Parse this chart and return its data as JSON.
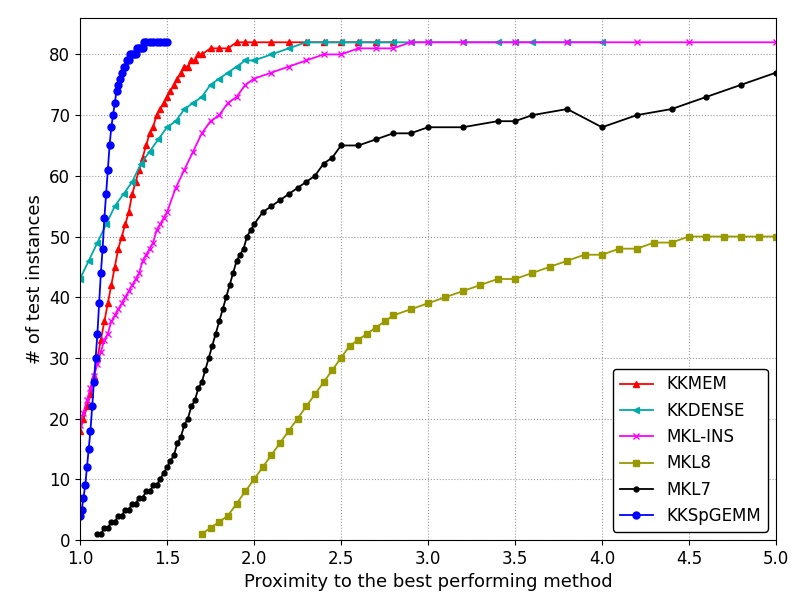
{
  "xlabel": "Proximity to the best performing method",
  "ylabel": "# of test instances",
  "xlim": [
    1.0,
    5.0
  ],
  "ylim": [
    0,
    86
  ],
  "series": [
    {
      "label": "KKMEM",
      "color": "#ff0000",
      "marker": "^",
      "markersize": 5,
      "linewidth": 1.3,
      "x": [
        1.0,
        1.02,
        1.04,
        1.06,
        1.08,
        1.1,
        1.12,
        1.14,
        1.16,
        1.18,
        1.2,
        1.22,
        1.24,
        1.26,
        1.28,
        1.3,
        1.32,
        1.34,
        1.36,
        1.38,
        1.4,
        1.42,
        1.44,
        1.46,
        1.48,
        1.5,
        1.52,
        1.54,
        1.56,
        1.58,
        1.6,
        1.62,
        1.64,
        1.66,
        1.68,
        1.7,
        1.75,
        1.8,
        1.85,
        1.9,
        1.95,
        2.0,
        2.1,
        2.2,
        2.3,
        2.4,
        2.5,
        2.6,
        2.7,
        2.8
      ],
      "y": [
        18,
        20,
        22,
        24,
        27,
        30,
        33,
        36,
        39,
        42,
        45,
        48,
        50,
        52,
        54,
        57,
        59,
        61,
        63,
        65,
        67,
        68,
        70,
        71,
        72,
        73,
        74,
        75,
        76,
        77,
        78,
        78,
        79,
        79,
        80,
        80,
        81,
        81,
        81,
        82,
        82,
        82,
        82,
        82,
        82,
        82,
        82,
        82,
        82,
        82
      ]
    },
    {
      "label": "KKDENSE",
      "color": "#00aaaa",
      "marker": "<",
      "markersize": 5,
      "linewidth": 1.3,
      "x": [
        1.0,
        1.05,
        1.1,
        1.15,
        1.2,
        1.25,
        1.3,
        1.35,
        1.4,
        1.45,
        1.5,
        1.55,
        1.6,
        1.65,
        1.7,
        1.75,
        1.8,
        1.85,
        1.9,
        1.95,
        2.0,
        2.1,
        2.2,
        2.3,
        2.4,
        2.5,
        2.6,
        2.7,
        2.8,
        2.9,
        3.0,
        3.2,
        3.4,
        3.5,
        3.6,
        3.8,
        4.0
      ],
      "y": [
        43,
        46,
        49,
        52,
        55,
        57,
        59,
        62,
        64,
        66,
        68,
        69,
        71,
        72,
        73,
        75,
        76,
        77,
        78,
        79,
        79,
        80,
        81,
        82,
        82,
        82,
        82,
        82,
        82,
        82,
        82,
        82,
        82,
        82,
        82,
        82,
        82
      ]
    },
    {
      "label": "MKL-INS",
      "color": "#ff00ff",
      "marker": "x",
      "markersize": 5,
      "linewidth": 1.3,
      "x": [
        1.0,
        1.02,
        1.04,
        1.06,
        1.08,
        1.1,
        1.12,
        1.14,
        1.16,
        1.18,
        1.2,
        1.22,
        1.24,
        1.26,
        1.28,
        1.3,
        1.32,
        1.34,
        1.36,
        1.38,
        1.4,
        1.42,
        1.44,
        1.46,
        1.48,
        1.5,
        1.55,
        1.6,
        1.65,
        1.7,
        1.75,
        1.8,
        1.85,
        1.9,
        1.95,
        2.0,
        2.1,
        2.2,
        2.3,
        2.4,
        2.5,
        2.6,
        2.7,
        2.8,
        2.9,
        3.0,
        3.2,
        3.5,
        3.8,
        4.2,
        4.5,
        5.0
      ],
      "y": [
        19,
        21,
        23,
        25,
        27,
        29,
        31,
        33,
        34,
        36,
        37,
        38,
        39,
        40,
        41,
        42,
        43,
        44,
        46,
        47,
        48,
        49,
        51,
        52,
        53,
        54,
        58,
        61,
        64,
        67,
        69,
        70,
        72,
        73,
        75,
        76,
        77,
        78,
        79,
        80,
        80,
        81,
        81,
        81,
        82,
        82,
        82,
        82,
        82,
        82,
        82,
        82
      ]
    },
    {
      "label": "MKL8",
      "color": "#999900",
      "marker": "s",
      "markersize": 5,
      "linewidth": 1.3,
      "x": [
        1.7,
        1.75,
        1.8,
        1.85,
        1.9,
        1.95,
        2.0,
        2.05,
        2.1,
        2.15,
        2.2,
        2.25,
        2.3,
        2.35,
        2.4,
        2.45,
        2.5,
        2.55,
        2.6,
        2.65,
        2.7,
        2.75,
        2.8,
        2.9,
        3.0,
        3.1,
        3.2,
        3.3,
        3.4,
        3.5,
        3.6,
        3.7,
        3.8,
        3.9,
        4.0,
        4.1,
        4.2,
        4.3,
        4.4,
        4.5,
        4.6,
        4.7,
        4.8,
        4.9,
        5.0
      ],
      "y": [
        1,
        2,
        3,
        4,
        6,
        8,
        10,
        12,
        14,
        16,
        18,
        20,
        22,
        24,
        26,
        28,
        30,
        32,
        33,
        34,
        35,
        36,
        37,
        38,
        39,
        40,
        41,
        42,
        43,
        43,
        44,
        45,
        46,
        47,
        47,
        48,
        48,
        49,
        49,
        50,
        50,
        50,
        50,
        50,
        50
      ]
    },
    {
      "label": "MKL7",
      "color": "#000000",
      "marker": "o",
      "markersize": 3.5,
      "linewidth": 1.3,
      "x": [
        1.1,
        1.12,
        1.14,
        1.16,
        1.18,
        1.2,
        1.22,
        1.24,
        1.26,
        1.28,
        1.3,
        1.32,
        1.34,
        1.36,
        1.38,
        1.4,
        1.42,
        1.44,
        1.46,
        1.48,
        1.5,
        1.52,
        1.54,
        1.56,
        1.58,
        1.6,
        1.62,
        1.64,
        1.66,
        1.68,
        1.7,
        1.72,
        1.74,
        1.76,
        1.78,
        1.8,
        1.82,
        1.84,
        1.86,
        1.88,
        1.9,
        1.92,
        1.94,
        1.96,
        1.98,
        2.0,
        2.05,
        2.1,
        2.15,
        2.2,
        2.25,
        2.3,
        2.35,
        2.4,
        2.45,
        2.5,
        2.6,
        2.7,
        2.8,
        2.9,
        3.0,
        3.2,
        3.4,
        3.5,
        3.6,
        3.8,
        4.0,
        4.2,
        4.4,
        4.6,
        4.8,
        5.0
      ],
      "y": [
        1,
        1,
        2,
        2,
        3,
        3,
        4,
        4,
        5,
        5,
        6,
        6,
        7,
        7,
        8,
        8,
        9,
        9,
        10,
        11,
        12,
        13,
        14,
        16,
        17,
        19,
        20,
        22,
        23,
        25,
        26,
        28,
        30,
        32,
        34,
        36,
        38,
        40,
        42,
        44,
        46,
        47,
        48,
        50,
        51,
        52,
        54,
        55,
        56,
        57,
        58,
        59,
        60,
        62,
        63,
        65,
        65,
        66,
        67,
        67,
        68,
        68,
        69,
        69,
        70,
        71,
        68,
        70,
        71,
        73,
        75,
        77
      ]
    },
    {
      "label": "KKSpGEMM",
      "color": "#0000ff",
      "marker": "o",
      "markersize": 5,
      "linewidth": 1.3,
      "x": [
        1.0,
        1.01,
        1.02,
        1.03,
        1.04,
        1.05,
        1.06,
        1.07,
        1.08,
        1.09,
        1.1,
        1.11,
        1.12,
        1.13,
        1.14,
        1.15,
        1.16,
        1.17,
        1.18,
        1.19,
        1.2,
        1.21,
        1.22,
        1.23,
        1.24,
        1.25,
        1.26,
        1.27,
        1.28,
        1.29,
        1.3,
        1.31,
        1.32,
        1.33,
        1.34,
        1.35,
        1.36,
        1.37,
        1.38,
        1.4,
        1.42,
        1.44,
        1.46,
        1.48,
        1.5
      ],
      "y": [
        4,
        5,
        7,
        9,
        12,
        15,
        18,
        22,
        26,
        30,
        34,
        39,
        44,
        48,
        53,
        57,
        61,
        65,
        68,
        70,
        72,
        74,
        75,
        76,
        77,
        78,
        78,
        79,
        79,
        80,
        80,
        80,
        80,
        81,
        81,
        81,
        81,
        82,
        82,
        82,
        82,
        82,
        82,
        82,
        82
      ]
    }
  ],
  "legend_loc": "lower right",
  "legend_fontsize": 12,
  "tick_fontsize": 12,
  "label_fontsize": 13,
  "xticks": [
    1.0,
    1.5,
    2.0,
    2.5,
    3.0,
    3.5,
    4.0,
    4.5,
    5.0
  ],
  "yticks": [
    0,
    10,
    20,
    30,
    40,
    50,
    60,
    70,
    80
  ]
}
